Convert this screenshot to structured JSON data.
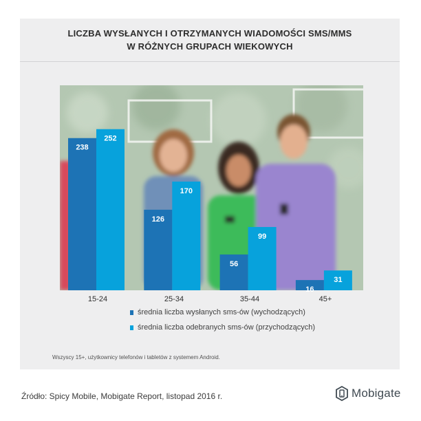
{
  "title_lines": [
    "LICZBA WYSŁANYCH I OTRZYMANYCH WIADOMOŚCI SMS/MMS",
    "W RÓŻNYCH GRUPACH WIEKOWYCH"
  ],
  "colors": {
    "sent": "#1d73b5",
    "received": "#07a2dc"
  },
  "chart_data": {
    "type": "bar",
    "categories": [
      "15-24",
      "25-34",
      "35-44",
      "45+"
    ],
    "series": [
      {
        "name": "średnia liczba wysłanych sms-ów (wychodzących)",
        "values": [
          238,
          126,
          56,
          16
        ]
      },
      {
        "name": "średnia liczba odebranych sms-ów (przychodzących)",
        "values": [
          252,
          170,
          99,
          31
        ]
      }
    ],
    "ylim": [
      0,
      270
    ],
    "legend_position": "bottom"
  },
  "legend": [
    "średnia liczba wysłanych sms-ów (wychodzących)",
    "średnia liczba odebranych sms-ów (przychodzących)"
  ],
  "note": "Wszyscy 15+, użytkownicy telefonów i tabletów z systemem Android.",
  "source": "Źródło: Spicy Mobile, Mobigate Report, listopad 2016 r.",
  "brand": "Mobigate"
}
